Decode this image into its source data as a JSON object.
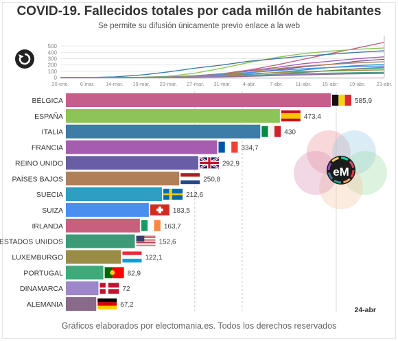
{
  "title": "COVID-19. Fallecidos totales por cada millón de habitantes",
  "subtitle": "Se permite su difusión únicamente previo enlace a la web",
  "footer": "Gráficos elaborados por electomania.es. Todos los derechos reservados",
  "replay_icon": "replay-icon",
  "logo_text": "eM",
  "chart_data": [
    {
      "type": "bar",
      "orientation": "horizontal",
      "date_label": "24-abr",
      "categories": [
        "BÉLGICA",
        "ESPAÑA",
        "ITALIA",
        "FRANCIA",
        "REINO UNIDO",
        "PAÍSES BAJOS",
        "SUECIA",
        "SUIZA",
        "IRLANDA",
        "ESTADOS UNIDOS",
        "LUXEMBURGO",
        "PORTUGAL",
        "DINAMARCA",
        "ALEMANIA"
      ],
      "values": [
        585.9,
        473.4,
        430,
        334.7,
        292.9,
        250.8,
        212.6,
        183.5,
        163.7,
        152.6,
        122.1,
        82.9,
        72,
        67.2
      ],
      "value_labels": [
        "585,9",
        "473,4",
        "430",
        "334,7",
        "292,9",
        "250,8",
        "212,6",
        "183,5",
        "163,7",
        "152,6",
        "122,1",
        "82,9",
        "72",
        "67,2"
      ],
      "colors": [
        "#c55f8a",
        "#8dc45a",
        "#3d7ca8",
        "#a65db1",
        "#6a5da8",
        "#b17f57",
        "#2e9fc3",
        "#4b8ef0",
        "#c6607e",
        "#3c9a76",
        "#9a8c45",
        "#3daa7a",
        "#9d86c9",
        "#8a6a8a"
      ],
      "flags": [
        "belgium",
        "spain",
        "italy",
        "france",
        "uk",
        "netherlands",
        "sweden",
        "switzerland",
        "ireland",
        "usa",
        "luxembourg",
        "portugal",
        "denmark",
        "germany"
      ],
      "xlim": [
        0,
        600
      ]
    },
    {
      "type": "line",
      "x_ticks": [
        "20-ene.",
        "6-mar.",
        "14-mar.",
        "19-mar.",
        "23-mar.",
        "27-mar.",
        "31-mar.",
        "4-abr.",
        "7-abr.",
        "11-abr.",
        "15-abr.",
        "19-abr.",
        "23-abr."
      ],
      "y_ticks": [
        0,
        100,
        200,
        300,
        400,
        500
      ],
      "ylim": [
        0,
        600
      ],
      "series": [
        {
          "color": "#c55f8a",
          "values": [
            0,
            0,
            0,
            1,
            4,
            20,
            60,
            120,
            200,
            290,
            380,
            470,
            560
          ]
        },
        {
          "color": "#8dc45a",
          "values": [
            0,
            0,
            1,
            4,
            20,
            70,
            150,
            240,
            320,
            380,
            420,
            450,
            470
          ]
        },
        {
          "color": "#3d7ca8",
          "values": [
            0,
            1,
            10,
            40,
            90,
            150,
            200,
            260,
            300,
            340,
            370,
            400,
            425
          ]
        },
        {
          "color": "#a65db1",
          "values": [
            0,
            0,
            1,
            3,
            10,
            30,
            60,
            110,
            160,
            220,
            260,
            300,
            330
          ]
        },
        {
          "color": "#6a5da8",
          "values": [
            0,
            0,
            0,
            1,
            5,
            15,
            40,
            80,
            120,
            170,
            210,
            260,
            290
          ]
        },
        {
          "color": "#b17f57",
          "values": [
            0,
            0,
            0,
            2,
            8,
            25,
            60,
            100,
            140,
            180,
            210,
            235,
            250
          ]
        },
        {
          "color": "#2e9fc3",
          "values": [
            0,
            0,
            0,
            1,
            2,
            8,
            25,
            50,
            80,
            120,
            160,
            190,
            210
          ]
        },
        {
          "color": "#4b8ef0",
          "values": [
            0,
            0,
            0,
            2,
            8,
            25,
            50,
            80,
            110,
            140,
            160,
            175,
            183
          ]
        },
        {
          "color": "#c6607e",
          "values": [
            0,
            0,
            0,
            0,
            1,
            5,
            15,
            30,
            50,
            80,
            110,
            140,
            163
          ]
        },
        {
          "color": "#3c9a76",
          "values": [
            0,
            0,
            0,
            0,
            1,
            4,
            12,
            30,
            55,
            85,
            110,
            135,
            152
          ]
        },
        {
          "color": "#9a8c45",
          "values": [
            0,
            0,
            0,
            1,
            5,
            20,
            40,
            60,
            80,
            95,
            105,
            115,
            122
          ]
        },
        {
          "color": "#3daa7a",
          "values": [
            0,
            0,
            0,
            0,
            2,
            8,
            20,
            35,
            50,
            60,
            70,
            78,
            83
          ]
        },
        {
          "color": "#9d86c9",
          "values": [
            0,
            0,
            0,
            1,
            3,
            10,
            20,
            32,
            45,
            55,
            62,
            68,
            72
          ]
        },
        {
          "color": "#8a6a8a",
          "values": [
            0,
            0,
            0,
            0,
            1,
            4,
            10,
            20,
            32,
            42,
            52,
            60,
            67
          ]
        }
      ]
    }
  ]
}
